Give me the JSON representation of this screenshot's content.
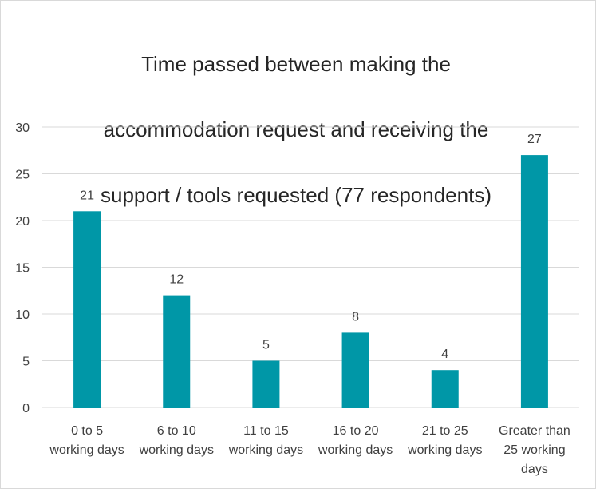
{
  "chart_data": {
    "type": "bar",
    "title": "Time passed between making the accommodation request and receiving the support / tools requested (77 respondents)",
    "title_lines": [
      "Time passed between making the",
      "accommodation request and receiving the",
      "support / tools requested (77 respondents)"
    ],
    "categories": [
      "0 to 5 working days",
      "6 to 10 working days",
      "11 to 15 working days",
      "16 to 20 working days",
      "21 to 25 working days",
      "Greater than 25 working days"
    ],
    "category_lines": [
      [
        "0 to 5",
        "working days"
      ],
      [
        "6 to 10",
        "working days"
      ],
      [
        "11 to 15",
        "working days"
      ],
      [
        "16 to 20",
        "working days"
      ],
      [
        "21 to 25",
        "working days"
      ],
      [
        "Greater than",
        "25 working",
        "days"
      ]
    ],
    "values": [
      21,
      12,
      5,
      8,
      4,
      27
    ],
    "ylim": [
      0,
      30
    ],
    "yticks": [
      0,
      5,
      10,
      15,
      20,
      25,
      30
    ],
    "xlabel": "",
    "ylabel": "",
    "grid": true,
    "legend": "none",
    "bar_color": "#0097a7",
    "grid_color": "#d9d9d9"
  }
}
